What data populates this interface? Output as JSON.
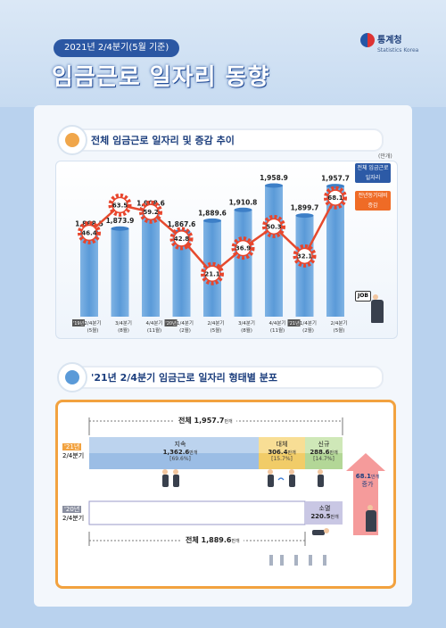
{
  "header": {
    "badge": "2021년 2/4분기(5월 기준)",
    "title": "임금근로 일자리 동향",
    "org": "통계청",
    "org_en": "Statistics Korea"
  },
  "section1": {
    "title": "전체 임금근로 일자리 및 증감 추이",
    "unit": "(만개)",
    "legend_jobs": [
      "전체 임금근로",
      "일자리"
    ],
    "legend_change": [
      "전년동기대비",
      "증감"
    ],
    "job_tag": "JOB"
  },
  "section2": {
    "title": "'21년 2/4분기 임금근로 일자리 형태별 분포",
    "total_21_label": "전체",
    "total_21_value": "1,957.7",
    "total_21_unit": "만개",
    "total_20_label": "전체",
    "total_20_value": "1,889.6",
    "total_20_unit": "만개",
    "row21_year": "'21년",
    "row21_period": "2/4분기",
    "row20_year": "'20년",
    "row20_period": "2/4분기",
    "sustain_label": "지속",
    "sustain_value": "1,362.6",
    "sustain_unit": "만개",
    "sustain_pct": "[69.6%]",
    "replace_label": "대체",
    "replace_value": "306.4",
    "replace_unit": "만개",
    "replace_pct": "[15.7%]",
    "new_label": "신규",
    "new_value": "288.6",
    "new_unit": "만개",
    "new_pct": "[14.7%]",
    "ext_label": "소멸",
    "ext_value": "220.5",
    "ext_unit": "만개",
    "increase_value": "68.1",
    "increase_unit": "만개",
    "increase_label": "증가"
  },
  "colors": {
    "bar": "#5a9ad8",
    "line": "#e64a2e",
    "gear": "#e8452c",
    "sustain": "#bcd3ee",
    "replace": "#f8de95",
    "new": "#cfe8b8",
    "ext": "#c9c7e4"
  },
  "chart_data": {
    "type": "bar",
    "categories": [
      "2/4분기 (5월)",
      "3/4분기 (8월)",
      "4/4분기 (11월)",
      "1/4분기 (2월)",
      "2/4분기 (5월)",
      "3/4분기 (8월)",
      "4/4분기 (11월)",
      "1/4분기 (2월)",
      "2/4분기 (5월)"
    ],
    "year_tags": [
      "'19년",
      "",
      "",
      "'20년",
      "",
      "",
      "",
      "'21년",
      ""
    ],
    "series": [
      {
        "name": "전체 임금근로 일자리",
        "type": "bar",
        "values": [
          1868.5,
          1873.9,
          1908.6,
          1867.6,
          1889.6,
          1910.8,
          1958.9,
          1899.7,
          1957.7
        ]
      },
      {
        "name": "전년동기대비 증감",
        "type": "line",
        "values": [
          46.4,
          63.5,
          59.2,
          42.8,
          21.1,
          36.9,
          50.3,
          32.1,
          68.1
        ]
      }
    ],
    "value_labels": [
      "1,868.5",
      "1,873.9",
      "1,908.6",
      "1,867.6",
      "1,889.6",
      "1,910.8",
      "1,958.9",
      "1,899.7",
      "1,957.7"
    ],
    "ylabel": "",
    "unit": "만개"
  }
}
